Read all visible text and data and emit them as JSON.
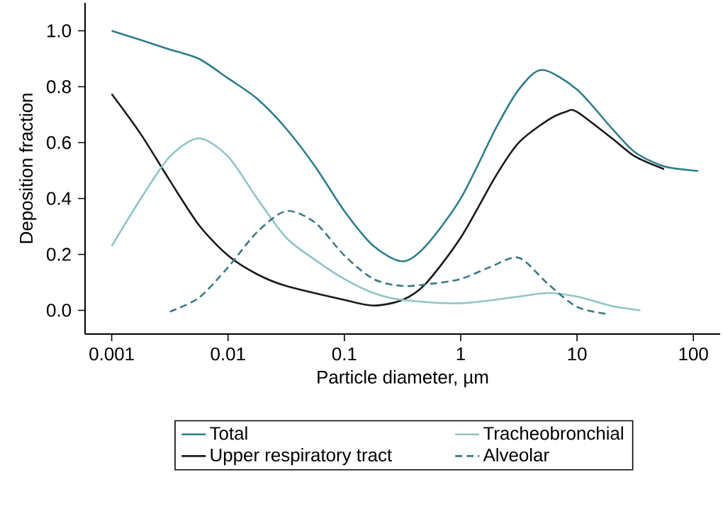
{
  "chart_data": {
    "type": "line",
    "xlabel": "Particle diameter, µm",
    "ylabel": "Deposition fraction",
    "log": "x",
    "legend": "bottom",
    "grid": false,
    "xlim": [
      0.00059,
      170
    ],
    "ylim": [
      -0.085,
      1.1
    ],
    "xticks": [
      0.001,
      0.01,
      0.1,
      1,
      10,
      100
    ],
    "yticks": [
      {
        "value": 0,
        "label": "0.0"
      },
      0.2,
      0.4,
      0.6,
      0.8,
      {
        "value": 1,
        "label": "1.0"
      }
    ],
    "series": [
      {
        "name": "Total",
        "color": "#2e7d8c",
        "line_style": "solid",
        "x": [
          0.001,
          0.00178,
          0.00316,
          0.00562,
          0.01,
          0.0178,
          0.0316,
          0.0562,
          0.1,
          0.178,
          0.316,
          0.5,
          1,
          2,
          3.16,
          5,
          10,
          20,
          31.6,
          56,
          100,
          110
        ],
        "values": [
          1.0,
          0.967,
          0.933,
          0.9,
          0.83,
          0.757,
          0.65,
          0.514,
          0.355,
          0.23,
          0.175,
          0.23,
          0.4,
          0.65,
          0.79,
          0.86,
          0.79,
          0.65,
          0.565,
          0.515,
          0.5,
          0.5
        ]
      },
      {
        "name": "Upper respiratory tract",
        "color": "#1a1a1a",
        "line_style": "solid",
        "x": [
          0.001,
          0.00178,
          0.00316,
          0.00562,
          0.01,
          0.0178,
          0.0316,
          0.1,
          0.178,
          0.316,
          0.5,
          1,
          2,
          3.16,
          5.6,
          8,
          10,
          20,
          31.6,
          56
        ],
        "values": [
          0.774,
          0.63,
          0.464,
          0.305,
          0.196,
          0.129,
          0.087,
          0.037,
          0.017,
          0.037,
          0.095,
          0.26,
          0.48,
          0.6,
          0.68,
          0.71,
          0.71,
          0.615,
          0.55,
          0.505
        ]
      },
      {
        "name": "Tracheobronchial",
        "color": "#8fc4c8",
        "line_style": "solid",
        "x": [
          0.001,
          0.00178,
          0.00316,
          0.00562,
          0.01,
          0.0178,
          0.0316,
          0.0562,
          0.1,
          0.178,
          0.316,
          1,
          3.16,
          5.6,
          10,
          20,
          35
        ],
        "values": [
          0.23,
          0.4,
          0.55,
          0.615,
          0.55,
          0.4,
          0.26,
          0.18,
          0.112,
          0.062,
          0.037,
          0.025,
          0.049,
          0.062,
          0.049,
          0.015,
          0.0
        ]
      },
      {
        "name": "Alveolar",
        "color": "#3a7a85",
        "line_style": "dashed",
        "x": [
          0.00316,
          0.00562,
          0.01,
          0.0178,
          0.0316,
          0.0562,
          0.1,
          0.178,
          0.316,
          0.562,
          1,
          1.78,
          3.16,
          5.6,
          10,
          18
        ],
        "values": [
          -0.005,
          0.045,
          0.154,
          0.28,
          0.355,
          0.313,
          0.196,
          0.112,
          0.087,
          0.095,
          0.112,
          0.154,
          0.188,
          0.095,
          0.012,
          -0.013
        ]
      }
    ]
  }
}
